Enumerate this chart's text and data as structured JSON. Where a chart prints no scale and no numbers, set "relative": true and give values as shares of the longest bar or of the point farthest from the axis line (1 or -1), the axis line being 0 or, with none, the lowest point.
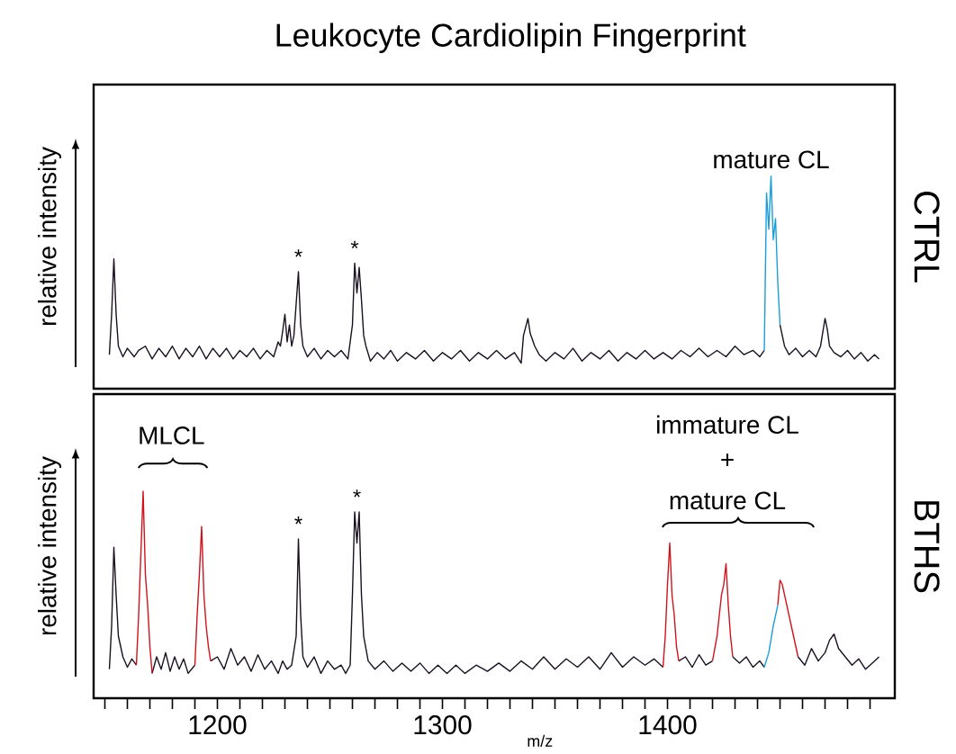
{
  "chart_data": [
    {
      "type": "line",
      "title": "Leukocyte Cardiolipin Fingerprint",
      "ylabel": "relative intensity",
      "relative": true,
      "xlim": [
        1145,
        1501
      ],
      "tick_labels": false,
      "annotations": [
        {
          "text": "*",
          "x": 1236,
          "y": 0.55
        },
        {
          "text": "*",
          "x": 1261,
          "y": 0.59
        },
        {
          "text": "mature CL",
          "x": 1446,
          "y": 1.0
        },
        "CTRL"
      ],
      "series": [
        {
          "color": "#1a1020",
          "x": [
            1152,
            1153,
            1154,
            1155,
            1156,
            1158,
            1160,
            1163,
            1165,
            1168,
            1171,
            1174,
            1177,
            1180,
            1183,
            1186,
            1189,
            1192,
            1195,
            1198,
            1201,
            1204,
            1207,
            1210,
            1213,
            1216,
            1219,
            1222,
            1225,
            1227,
            1228,
            1229,
            1230,
            1231,
            1232,
            1233,
            1234,
            1235,
            1236,
            1237,
            1238,
            1240,
            1243,
            1246,
            1249,
            1252,
            1255,
            1258,
            1260,
            1261,
            1262,
            1263,
            1264,
            1265,
            1266,
            1268,
            1271,
            1274,
            1277,
            1280,
            1284,
            1288,
            1292,
            1296,
            1300,
            1304,
            1308,
            1312,
            1316,
            1320,
            1324,
            1328,
            1332,
            1335,
            1336,
            1338,
            1339,
            1341,
            1343,
            1346,
            1350,
            1354,
            1358,
            1362,
            1366,
            1370,
            1374,
            1378,
            1382,
            1386,
            1390,
            1394,
            1398,
            1402,
            1406,
            1410,
            1414,
            1418,
            1422,
            1426,
            1430,
            1434,
            1438,
            1441,
            1443,
            1446,
            1450,
            1451,
            1452,
            1454,
            1457,
            1460,
            1463,
            1466,
            1468,
            1470,
            1471,
            1472,
            1474,
            1477,
            1480,
            1483,
            1486,
            1489,
            1492,
            1494
          ],
          "values": [
            0.16,
            0.35,
            0.61,
            0.35,
            0.2,
            0.15,
            0.19,
            0.15,
            0.18,
            0.2,
            0.14,
            0.19,
            0.15,
            0.2,
            0.14,
            0.19,
            0.15,
            0.2,
            0.14,
            0.19,
            0.15,
            0.19,
            0.14,
            0.18,
            0.15,
            0.19,
            0.14,
            0.18,
            0.15,
            0.22,
            0.2,
            0.27,
            0.35,
            0.22,
            0.3,
            0.2,
            0.25,
            0.4,
            0.55,
            0.3,
            0.2,
            0.15,
            0.19,
            0.14,
            0.18,
            0.15,
            0.18,
            0.14,
            0.3,
            0.59,
            0.45,
            0.57,
            0.42,
            0.25,
            0.2,
            0.13,
            0.17,
            0.14,
            0.18,
            0.13,
            0.17,
            0.14,
            0.18,
            0.13,
            0.17,
            0.14,
            0.18,
            0.13,
            0.17,
            0.14,
            0.18,
            0.14,
            0.17,
            0.12,
            0.25,
            0.33,
            0.26,
            0.2,
            0.16,
            0.13,
            0.17,
            0.14,
            0.19,
            0.13,
            0.17,
            0.14,
            0.18,
            0.13,
            0.17,
            0.14,
            0.18,
            0.14,
            0.17,
            0.14,
            0.18,
            0.15,
            0.19,
            0.15,
            0.18,
            0.15,
            0.2,
            0.16,
            0.18,
            0.15,
            0.18,
            null,
            0.3,
            0.25,
            0.2,
            0.16,
            0.19,
            0.15,
            0.18,
            0.15,
            0.2,
            0.33,
            0.28,
            0.2,
            0.17,
            0.15,
            0.18,
            0.14,
            0.17,
            0.13,
            0.16,
            0.14
          ]
        },
        {
          "color": "#1a9ed9",
          "x": [
            1443,
            1444,
            1445,
            1446,
            1447,
            1448,
            1449,
            1450
          ],
          "values": [
            0.18,
            0.92,
            0.75,
            1.0,
            0.7,
            0.8,
            0.5,
            0.3
          ]
        }
      ]
    },
    {
      "type": "line",
      "xlabel": "m/z",
      "ylabel": "relative intensity",
      "relative": true,
      "xlim": [
        1145,
        1501
      ],
      "tick_labels": "x",
      "xticks": [
        {
          "value": 1150,
          "label": null
        },
        {
          "value": 1160,
          "label": null
        },
        {
          "value": 1170,
          "label": null
        },
        {
          "value": 1180,
          "label": null
        },
        {
          "value": 1190,
          "label": null
        },
        1200,
        {
          "value": 1210,
          "label": null
        },
        {
          "value": 1220,
          "label": null
        },
        {
          "value": 1230,
          "label": null
        },
        {
          "value": 1240,
          "label": null
        },
        {
          "value": 1250,
          "label": null
        },
        {
          "value": 1260,
          "label": null
        },
        {
          "value": 1270,
          "label": null
        },
        {
          "value": 1280,
          "label": null
        },
        {
          "value": 1290,
          "label": null
        },
        1300,
        {
          "value": 1310,
          "label": null
        },
        {
          "value": 1320,
          "label": null
        },
        {
          "value": 1330,
          "label": null
        },
        {
          "value": 1340,
          "label": null
        },
        {
          "value": 1350,
          "label": null
        },
        {
          "value": 1360,
          "label": null
        },
        {
          "value": 1370,
          "label": null
        },
        {
          "value": 1380,
          "label": null
        },
        {
          "value": 1390,
          "label": null
        },
        1400,
        {
          "value": 1410,
          "label": null
        },
        {
          "value": 1420,
          "label": null
        },
        {
          "value": 1430,
          "label": null
        },
        {
          "value": 1440,
          "label": null
        },
        {
          "value": 1450,
          "label": null
        },
        {
          "value": 1460,
          "label": null
        },
        {
          "value": 1470,
          "label": null
        },
        {
          "value": 1480,
          "label": null
        },
        {
          "value": 1490,
          "label": null
        }
      ],
      "annotations": [
        "MLCL",
        {
          "text": "*",
          "x": 1236,
          "y": 0.77
        },
        {
          "text": "*",
          "x": 1262,
          "y": 0.9
        },
        "immature CL",
        "+",
        "mature CL",
        "BTHS"
      ],
      "series": [
        {
          "color": "#1a1020",
          "x": [
            1152,
            1153,
            1154,
            1155,
            1156,
            1158,
            1160,
            1162,
            1164,
            1166,
            1171,
            1173,
            1175,
            1177,
            1179,
            1181,
            1183,
            1185,
            1187,
            1190,
            1193,
            1197,
            1200,
            1203,
            1206,
            1209,
            1212,
            1215,
            1218,
            1221,
            1224,
            1227,
            1229,
            1231,
            1233,
            1235,
            1236,
            1237,
            1238,
            1240,
            1243,
            1246,
            1249,
            1252,
            1255,
            1257,
            1259,
            1260,
            1261,
            1262,
            1263,
            1264,
            1265,
            1267,
            1270,
            1274,
            1278,
            1282,
            1286,
            1290,
            1294,
            1298,
            1302,
            1306,
            1310,
            1315,
            1320,
            1325,
            1330,
            1335,
            1340,
            1345,
            1350,
            1355,
            1360,
            1365,
            1370,
            1375,
            1380,
            1385,
            1390,
            1394,
            1398,
            1401,
            1405,
            1408,
            1411,
            1414,
            1417,
            1420,
            1424,
            1429,
            1432,
            1435,
            1438,
            1441,
            1443,
            1446,
            1458,
            1461,
            1464,
            1467,
            1470,
            1472,
            1474,
            1476,
            1479,
            1482,
            1485,
            1488,
            1491,
            1494
          ],
          "values": [
            0.14,
            0.35,
            0.73,
            0.5,
            0.3,
            0.2,
            0.15,
            0.19,
            0.16,
            null,
            0.12,
            0.2,
            0.14,
            0.22,
            0.13,
            0.2,
            0.14,
            0.19,
            0.12,
            0.16,
            null,
            0.18,
            0.2,
            0.14,
            0.24,
            0.16,
            0.2,
            0.13,
            0.21,
            0.14,
            0.18,
            0.12,
            0.18,
            0.14,
            0.16,
            0.3,
            0.77,
            0.4,
            0.2,
            0.15,
            0.2,
            0.12,
            0.18,
            0.14,
            0.16,
            0.12,
            0.16,
            0.5,
            0.9,
            0.75,
            0.9,
            0.5,
            0.3,
            0.18,
            0.14,
            0.18,
            0.13,
            0.17,
            0.13,
            0.17,
            0.12,
            0.16,
            0.12,
            0.16,
            0.12,
            0.16,
            0.13,
            0.17,
            0.13,
            0.18,
            0.14,
            0.2,
            0.14,
            0.19,
            0.15,
            0.2,
            0.14,
            0.22,
            0.15,
            0.2,
            0.16,
            0.19,
            0.15,
            null,
            0.18,
            0.2,
            0.15,
            0.21,
            0.16,
            0.18,
            null,
            0.2,
            0.17,
            0.2,
            0.15,
            0.18,
            0.15,
            null,
            0.2,
            0.16,
            0.24,
            0.18,
            0.22,
            0.28,
            0.31,
            0.24,
            0.2,
            0.16,
            0.19,
            0.14,
            0.17,
            0.2
          ]
        },
        {
          "color": "#d0121b",
          "x": [
            1164,
            1165,
            1166,
            1167,
            1168,
            1169,
            1170,
            1171,
            1180,
            1190,
            1191,
            1192,
            1193,
            1194,
            1195,
            1196,
            1197,
            1300,
            1398,
            1399,
            1400,
            1401,
            1402,
            1403,
            1404,
            1405,
            1412,
            1420,
            1422,
            1424,
            1425,
            1426,
            1427,
            1428,
            1429,
            1440,
            1449,
            1450,
            1451,
            1452,
            1454,
            1456,
            1458
          ],
          "values": [
            0.16,
            0.4,
            0.7,
            1.0,
            0.6,
            0.45,
            0.25,
            0.12,
            null,
            0.16,
            0.4,
            0.6,
            0.83,
            0.5,
            0.35,
            0.25,
            0.18,
            null,
            0.15,
            0.3,
            0.55,
            0.75,
            0.5,
            0.4,
            0.25,
            0.18,
            null,
            0.18,
            0.3,
            0.5,
            0.55,
            0.65,
            0.45,
            0.3,
            0.2,
            null,
            0.45,
            0.57,
            0.55,
            0.5,
            0.4,
            0.3,
            0.2
          ]
        },
        {
          "color": "#1a9ed9",
          "x": [
            1443,
            1445,
            1447,
            1448,
            1449
          ],
          "values": [
            0.15,
            0.22,
            0.35,
            0.4,
            0.45
          ]
        }
      ]
    }
  ]
}
